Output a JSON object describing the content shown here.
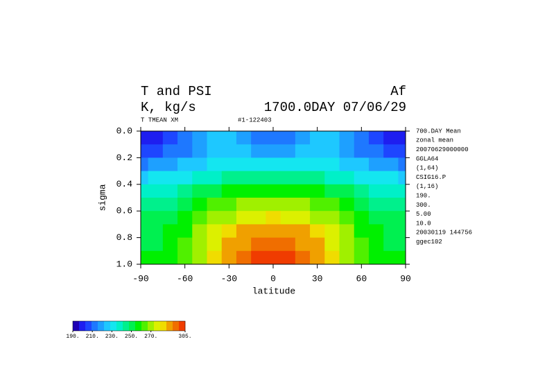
{
  "chart_data": {
    "type": "contour",
    "title": "T and PSI",
    "title_right": "Af",
    "subtitle": "K, kg/s",
    "subtitle_right": "1700.0DAY 07/06/29",
    "variable": "T TMEAN XM",
    "run": "#1-122403",
    "info": [
      "700.DAY Mean",
      "zonal mean",
      "20070629000000",
      "GGLA64",
      "(1,64)",
      "CSIG16.P",
      "(1,16)",
      "190.",
      "300.",
      "5.00",
      "10.0",
      "20030119 144756",
      "ggec102"
    ],
    "xlabel": "latitude",
    "ylabel": "sigma",
    "xlim": [
      -90,
      90
    ],
    "ylim": [
      1,
      0
    ],
    "xticks": [
      -90,
      -60,
      -30,
      0,
      30,
      60,
      90
    ],
    "yticks": [
      {
        "value": 0,
        "label": "0.0"
      },
      0.2,
      0.4,
      0.6,
      0.8,
      {
        "value": 1,
        "label": "1.0"
      }
    ],
    "x": [
      -90,
      -80,
      -70,
      -60,
      -50,
      -40,
      -30,
      -20,
      -10,
      0,
      10,
      20,
      30,
      40,
      50,
      60,
      70,
      80,
      90
    ],
    "y": [
      0.05,
      0.15,
      0.25,
      0.35,
      0.45,
      0.55,
      0.65,
      0.75,
      0.85,
      0.95
    ],
    "z": [
      [
        198,
        200,
        205,
        212,
        218,
        224,
        222,
        216,
        212,
        210,
        212,
        216,
        222,
        224,
        218,
        212,
        205,
        200,
        198
      ],
      [
        205,
        207,
        210,
        215,
        220,
        224,
        224,
        222,
        220,
        218,
        220,
        222,
        224,
        224,
        220,
        215,
        210,
        207,
        205
      ],
      [
        215,
        216,
        218,
        222,
        226,
        230,
        232,
        233,
        233,
        233,
        233,
        233,
        232,
        230,
        226,
        222,
        218,
        216,
        215
      ],
      [
        228,
        229,
        231,
        234,
        237,
        240,
        243,
        245,
        246,
        246,
        246,
        245,
        243,
        240,
        237,
        234,
        231,
        229,
        228
      ],
      [
        238,
        239,
        241,
        244,
        248,
        252,
        255,
        257,
        258,
        258,
        258,
        257,
        255,
        252,
        248,
        244,
        241,
        239,
        238
      ],
      [
        244,
        245,
        247,
        251,
        256,
        261,
        265,
        267,
        268,
        269,
        268,
        267,
        265,
        261,
        256,
        251,
        247,
        245,
        244
      ],
      [
        248,
        249,
        252,
        256,
        262,
        268,
        273,
        277,
        279,
        280,
        279,
        277,
        273,
        268,
        262,
        256,
        252,
        249,
        248
      ],
      [
        250,
        251,
        255,
        260,
        267,
        274,
        281,
        286,
        289,
        290,
        289,
        286,
        281,
        274,
        267,
        260,
        255,
        251,
        250
      ],
      [
        252,
        253,
        257,
        263,
        270,
        278,
        286,
        292,
        296,
        297,
        296,
        292,
        286,
        278,
        270,
        263,
        257,
        253,
        252
      ],
      [
        254,
        255,
        259,
        265,
        273,
        282,
        290,
        297,
        301,
        302,
        301,
        297,
        290,
        282,
        273,
        265,
        259,
        255,
        254
      ]
    ],
    "clim": [
      190,
      305
    ],
    "colors": [
      "#1e00b4",
      "#1e1ef0",
      "#1e46ff",
      "#1e78ff",
      "#1ea0ff",
      "#1ec8ff",
      "#14e6f0",
      "#00f0c8",
      "#00f08c",
      "#00f050",
      "#00f000",
      "#50f000",
      "#a0f000",
      "#dcf000",
      "#f0dc00",
      "#f0a000",
      "#f06e00",
      "#f03c00"
    ],
    "cticks": [
      {
        "value": 190,
        "label": "190."
      },
      {
        "value": 210,
        "label": "210."
      },
      {
        "value": 230,
        "label": "230."
      },
      {
        "value": 250,
        "label": "250."
      },
      {
        "value": 270,
        "label": "270."
      },
      {
        "value": 305,
        "label": "305."
      }
    ]
  }
}
